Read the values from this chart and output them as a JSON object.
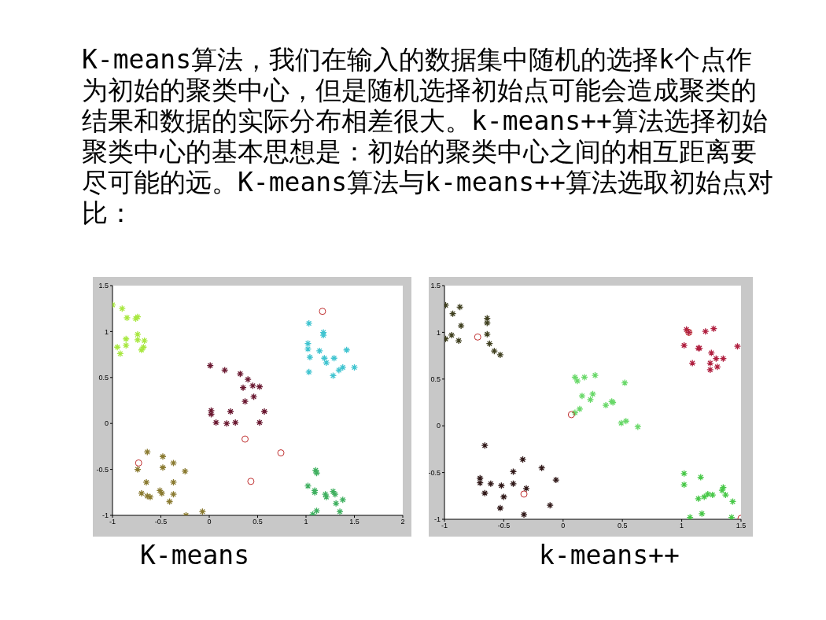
{
  "chart_data": [
    {
      "type": "scatter",
      "title": "K-means",
      "annotations": [
        "K-means算法，我们在输入的数据集中随机的选择k个点作为初始的聚类中心，但是随机选择初始点可能会造成聚类的结果和数据的实际分布相差很大。k-means++算法选择初始聚类中心的基本思想是：初始的聚类中心之间的相互距离要尽可能的远。K-means算法与k-means++算法选取初始点对比："
      ],
      "xlim": [
        -1,
        2
      ],
      "ylim": [
        -1,
        1.5
      ],
      "xticks": [
        -1,
        -0.5,
        0,
        0.5,
        1,
        1.5,
        2
      ],
      "yticks": [
        -1,
        -0.5,
        0,
        0.5,
        1,
        1.5
      ],
      "series": [
        {
          "color": "#a8e840",
          "marker": "cross",
          "x": [
            -1.0,
            -0.9,
            -0.85,
            -0.76,
            -0.74,
            -0.86,
            -0.86,
            -0.95,
            -0.92,
            -0.74,
            -0.74,
            -0.67,
            -0.68,
            -0.7
          ],
          "values": [
            1.29,
            1.25,
            1.15,
            1.14,
            1.16,
            0.92,
            0.85,
            0.83,
            0.76,
            0.97,
            0.91,
            0.9,
            0.83,
            0.8
          ]
        },
        {
          "color": "#6b1a32",
          "marker": "cross",
          "x": [
            0.01,
            0.16,
            0.32,
            0.4,
            0.35,
            0.45,
            0.52,
            0.46,
            0.37,
            0.02,
            0.02,
            0.22,
            0.57,
            0.07,
            0.18,
            0.27,
            0.52
          ],
          "values": [
            0.63,
            0.58,
            0.54,
            0.48,
            0.39,
            0.41,
            0.4,
            0.29,
            0.24,
            0.14,
            0.1,
            0.13,
            0.13,
            0.01,
            0.0,
            0.01,
            0.01
          ]
        },
        {
          "color": "#40c4d0",
          "marker": "cross",
          "x": [
            1.03,
            1.18,
            1.18,
            1.02,
            1.02,
            1.04,
            1.14,
            1.19,
            1.21,
            1.29,
            1.42,
            1.5,
            1.38,
            1.34,
            1.28,
            1.03
          ],
          "values": [
            1.09,
            0.99,
            0.96,
            0.87,
            0.81,
            0.72,
            0.79,
            0.71,
            0.66,
            0.71,
            0.8,
            0.61,
            0.61,
            0.58,
            0.52,
            0.56
          ]
        },
        {
          "color": "#8a7a30",
          "marker": "cross",
          "x": [
            -0.64,
            -0.48,
            -0.37,
            -0.48,
            -0.74,
            -0.25,
            -0.65,
            -0.37,
            -0.7,
            -0.64,
            -0.61,
            -0.51,
            -0.49,
            -0.37,
            -0.41,
            -0.24,
            -0.07
          ],
          "values": [
            -0.31,
            -0.36,
            -0.43,
            -0.48,
            -0.5,
            -0.52,
            -0.64,
            -0.64,
            -0.76,
            -0.79,
            -0.8,
            -0.73,
            -0.76,
            -0.77,
            -0.85,
            -1.0,
            -0.96
          ]
        },
        {
          "color": "#40b060",
          "marker": "cross",
          "x": [
            1.1,
            1.11,
            1.02,
            1.09,
            1.09,
            1.2,
            1.21,
            1.28,
            1.3,
            1.31,
            1.38,
            1.35,
            1.11,
            1.07
          ],
          "values": [
            -0.51,
            -0.54,
            -0.68,
            -0.73,
            -0.75,
            -0.77,
            -0.8,
            -0.74,
            -0.77,
            -0.87,
            -0.83,
            -0.96,
            -0.95,
            -0.99
          ]
        },
        {
          "color": "#c03030",
          "marker": "circle",
          "x": [
            1.17,
            0.37,
            0.74,
            0.43,
            -0.73
          ],
          "values": [
            1.22,
            -0.17,
            -0.32,
            -0.63,
            -0.43
          ]
        }
      ]
    },
    {
      "type": "scatter",
      "title": "k-means++",
      "xlim": [
        -1,
        1.5
      ],
      "ylim": [
        -1,
        1.5
      ],
      "xticks": [
        -1,
        -0.5,
        0,
        0.5,
        1,
        1.5
      ],
      "yticks": [
        -1,
        -0.5,
        0,
        0.5,
        1,
        1.5
      ],
      "series": [
        {
          "color": "#404020",
          "marker": "cross",
          "x": [
            -0.99,
            -0.93,
            -0.87,
            -0.86,
            -0.99,
            -0.94,
            -0.88,
            -0.64,
            -0.64,
            -0.64,
            -0.62,
            -0.58,
            -0.53
          ],
          "values": [
            1.29,
            1.2,
            1.27,
            1.07,
            0.93,
            0.97,
            0.91,
            1.15,
            1.1,
            0.98,
            0.88,
            0.8,
            0.76
          ]
        },
        {
          "color": "#301818",
          "marker": "cross",
          "x": [
            -0.66,
            -0.7,
            -0.7,
            -0.66,
            -0.61,
            -0.52,
            -0.5,
            -0.53,
            -0.42,
            -0.42,
            -0.34,
            -0.31,
            -0.33,
            -0.18,
            -0.06,
            -0.11
          ],
          "values": [
            -0.21,
            -0.56,
            -0.61,
            -0.72,
            -0.62,
            -0.64,
            -0.76,
            -0.88,
            -0.49,
            -0.62,
            -0.36,
            -0.67,
            -0.95,
            -0.45,
            -0.58,
            -0.85
          ]
        },
        {
          "color": "#68d868",
          "marker": "cross",
          "x": [
            0.1,
            0.12,
            0.18,
            0.27,
            0.52,
            0.16,
            0.25,
            0.23,
            0.36,
            0.41,
            0.42,
            0.14,
            0.1,
            0.49,
            0.53,
            0.63
          ],
          "values": [
            0.52,
            0.48,
            0.52,
            0.54,
            0.46,
            0.32,
            0.34,
            0.28,
            0.22,
            0.26,
            0.25,
            0.18,
            0.14,
            0.03,
            0.05,
            -0.01
          ]
        },
        {
          "color": "#b02040",
          "marker": "cross",
          "x": [
            1.04,
            1.06,
            1.02,
            1.2,
            1.27,
            1.14,
            1.15,
            1.09,
            1.25,
            1.29,
            1.35,
            1.24,
            1.24,
            1.3,
            1.47
          ],
          "values": [
            1.03,
            1.0,
            0.86,
            1.01,
            1.04,
            0.83,
            0.83,
            0.67,
            0.78,
            0.72,
            0.72,
            0.67,
            0.6,
            0.63,
            0.85
          ]
        },
        {
          "color": "#48c848",
          "marker": "cross",
          "x": [
            1.02,
            1.02,
            1.16,
            1.14,
            1.19,
            1.22,
            1.26,
            1.34,
            1.35,
            1.37,
            1.43,
            1.17,
            1.07,
            1.42
          ],
          "values": [
            -0.51,
            -0.63,
            -0.55,
            -0.78,
            -0.76,
            -0.73,
            -0.74,
            -0.69,
            -0.66,
            -0.74,
            -0.81,
            -0.94,
            -0.98,
            -0.98
          ]
        },
        {
          "color": "#c03030",
          "marker": "circle",
          "x": [
            -0.72,
            0.07,
            -0.33,
            1.06,
            1.5
          ],
          "values": [
            0.95,
            0.12,
            -0.73,
            1.0,
            -0.99
          ]
        }
      ]
    }
  ]
}
